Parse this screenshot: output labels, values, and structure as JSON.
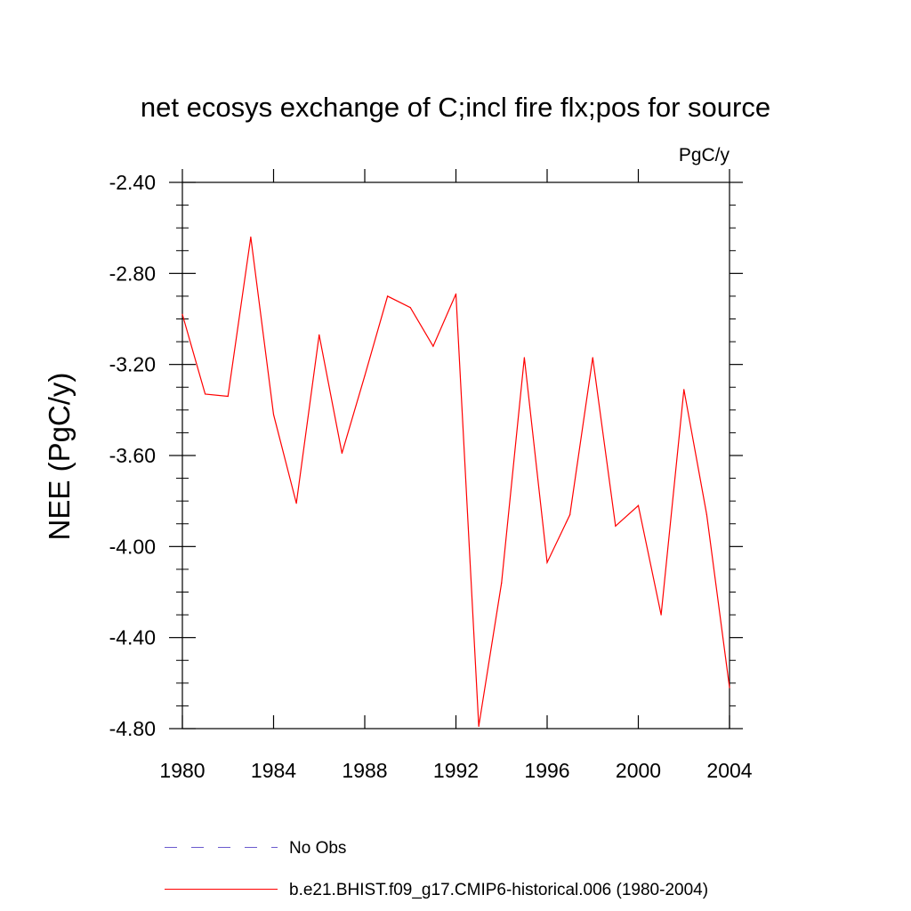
{
  "chart_data": {
    "type": "line",
    "title": "net ecosys exchange of C;incl fire flx;pos for source",
    "units_label": "PgC/y",
    "ylabel": "NEE  (PgC/y)",
    "xlabel": "",
    "xlim": [
      1980,
      2004
    ],
    "ylim": [
      -4.8,
      -2.4
    ],
    "x_ticks": [
      1980,
      1984,
      1988,
      1992,
      1996,
      2000,
      2004
    ],
    "x_tick_labels": [
      "1980",
      "1984",
      "1988",
      "1992",
      "1996",
      "2000",
      "2004"
    ],
    "y_ticks": [
      -2.4,
      -2.8,
      -3.2,
      -3.6,
      -4.0,
      -4.4,
      -4.8
    ],
    "y_tick_labels": [
      "-2.40",
      "-2.80",
      "-3.20",
      "-3.60",
      "-4.00",
      "-4.40",
      "-4.80"
    ],
    "grid": false,
    "legend_position": "bottom",
    "series": [
      {
        "name": "No Obs",
        "color": "#6a5acd",
        "style": "dashed",
        "x": [],
        "values": []
      },
      {
        "name": "b.e21.BHIST.f09_g17.CMIP6-historical.006 (1980-2004)",
        "color": "#ff0000",
        "style": "solid",
        "x": [
          1980,
          1981,
          1982,
          1983,
          1984,
          1985,
          1986,
          1987,
          1988,
          1989,
          1990,
          1991,
          1992,
          1993,
          1994,
          1995,
          1996,
          1997,
          1998,
          1999,
          2000,
          2001,
          2002,
          2003,
          2004
        ],
        "values": [
          -2.98,
          -3.33,
          -3.34,
          -2.64,
          -3.42,
          -3.81,
          -3.07,
          -3.59,
          -3.25,
          -2.9,
          -2.95,
          -3.12,
          -2.89,
          -4.79,
          -4.16,
          -3.17,
          -4.07,
          -3.86,
          -3.17,
          -3.91,
          -3.82,
          -4.3,
          -3.31,
          -3.86,
          -4.62
        ]
      }
    ]
  }
}
